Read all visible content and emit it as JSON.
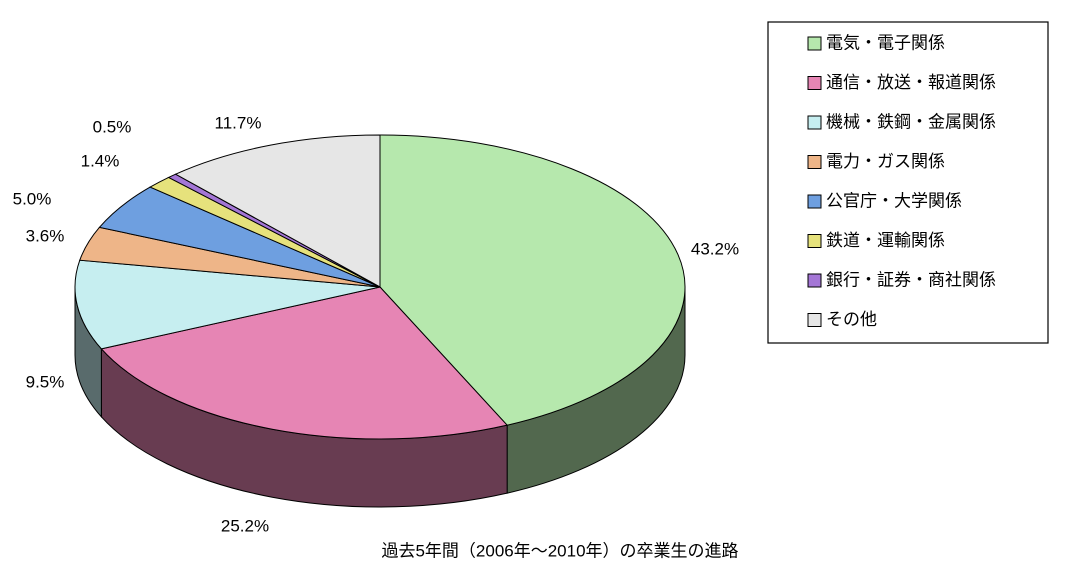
{
  "chart_data": {
    "type": "pie",
    "title": "過去5年間（2006年～2010年）の卒業生の進路",
    "categories": [
      "電気・電子関係",
      "通信・放送・報道関係",
      "機械・鉄鋼・金属関係",
      "電力・ガス関係",
      "公官庁・大学関係",
      "鉄道・運輸関係",
      "銀行・証券・商社関係",
      "その他"
    ],
    "values": [
      43.2,
      25.2,
      9.5,
      3.6,
      5.0,
      1.4,
      0.5,
      11.7
    ],
    "value_labels": [
      "43.2%",
      "25.2%",
      "9.5%",
      "3.6%",
      "5.0%",
      "1.4%",
      "0.5%",
      "11.7%"
    ],
    "colors": [
      "#b6e8ad",
      "#e685b4",
      "#c6eef0",
      "#eeb588",
      "#6e9fe0",
      "#e6e27c",
      "#a476d6",
      "#e6e6e6"
    ],
    "legend": "right"
  }
}
